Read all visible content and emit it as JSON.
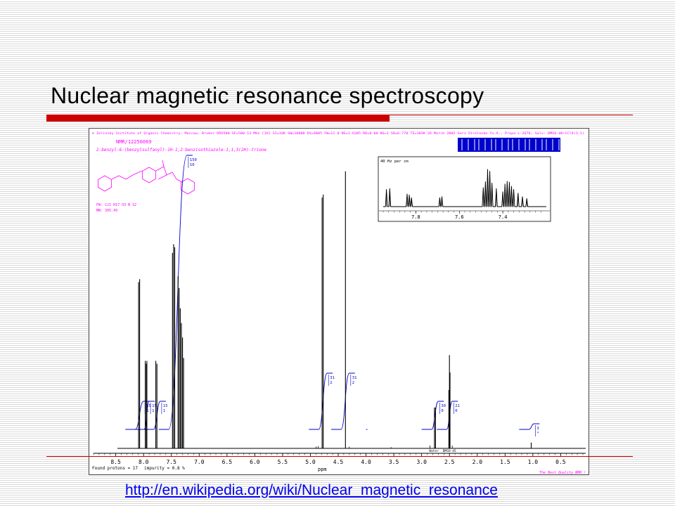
{
  "slide": {
    "title": "Nuclear magnetic resonance spectroscopy",
    "link_text": "http://en.wikipedia.org/wiki/Nuclear_magnetic_resonance"
  },
  "header": {
    "line1": "© Zelinsky Institute of Organic Chemistry, Moscow, Bruker DRX500 SF=500.13 MHz [1H] SI=16K SW=10000 DS=4005 FW=12.0 NS=1.6385 RD=0.00 NS=1 SR=6.778 TE=303K 26 March 2002 Gerz Strelenko Yu.A., Prepa L-2676; Solv: DMSO-d6+CCl4(3:1)",
    "sample_id": "NMR/12256069",
    "compound": "2-benzyl-6-(benzylsulfanyl)-1H-1,2-benzisothiazole-1,1,3(2H)-trione",
    "formula": "FW: C21 H17 O3 N S2",
    "mw": "MW: 395.49"
  },
  "footer": {
    "found_protons": "Found protons = 17",
    "impurity": "impurity = 0.8 %",
    "credit": "The Best Quality NMR !"
  },
  "colors": {
    "header_text": "#ff00ff",
    "trace": "#000000",
    "integral": "#0000cc",
    "accent_red": "#cc0000",
    "link": "#0000ee"
  },
  "chart_data": {
    "type": "line",
    "title": "",
    "xlabel": "ppm",
    "ylabel": "",
    "xlim": [
      8.9,
      0.05
    ],
    "x_reversed": true,
    "ticks": [
      8.5,
      8.0,
      7.5,
      7.0,
      6.5,
      6.0,
      5.5,
      5.0,
      4.5,
      4.0,
      3.5,
      3.0,
      2.5,
      2.0,
      1.5,
      1.0,
      0.5
    ],
    "tick_labels": [
      "8.5",
      "8.0",
      "7.5",
      "7.0",
      "6.5",
      "6.0",
      "5.5",
      "5.0",
      "4.5",
      "4.0",
      "3.5",
      "3.0",
      "2.5",
      "2.0",
      "1.5",
      "1.0",
      "0.5"
    ],
    "peaks": [
      {
        "ppm": 8.09,
        "height": 0.57
      },
      {
        "ppm": 8.07,
        "height": 0.58
      },
      {
        "ppm": 7.97,
        "height": 0.3
      },
      {
        "ppm": 7.95,
        "height": 0.29
      },
      {
        "ppm": 7.94,
        "height": 0.3
      },
      {
        "ppm": 7.78,
        "height": 0.3
      },
      {
        "ppm": 7.76,
        "height": 0.29
      },
      {
        "ppm": 7.48,
        "height": 0.67
      },
      {
        "ppm": 7.46,
        "height": 0.7
      },
      {
        "ppm": 7.44,
        "height": 0.69
      },
      {
        "ppm": 7.38,
        "height": 0.59
      },
      {
        "ppm": 7.36,
        "height": 0.55
      },
      {
        "ppm": 7.34,
        "height": 0.48
      },
      {
        "ppm": 7.32,
        "height": 0.43
      },
      {
        "ppm": 7.3,
        "height": 0.38
      },
      {
        "ppm": 7.28,
        "height": 0.31
      },
      {
        "ppm": 4.79,
        "height": 0.86
      },
      {
        "ppm": 4.77,
        "height": 0.87
      },
      {
        "ppm": 4.37,
        "height": 0.95
      },
      {
        "ppm": 2.77,
        "height": 0.14
      },
      {
        "ppm": 2.75,
        "height": 0.14
      },
      {
        "ppm": 2.51,
        "height": 0.2
      },
      {
        "ppm": 2.5,
        "height": 0.32
      },
      {
        "ppm": 2.49,
        "height": 0.26
      },
      {
        "ppm": 1.03,
        "height": 0.02
      }
    ],
    "integrals": [
      {
        "from": 8.15,
        "to": 8.0,
        "values": [
          "15",
          "1"
        ]
      },
      {
        "from": 7.99,
        "to": 7.9,
        "values": [
          "15",
          "1"
        ]
      },
      {
        "from": 7.82,
        "to": 7.7,
        "values": [
          "15",
          "1"
        ]
      },
      {
        "from": 7.55,
        "to": 7.22,
        "values": [
          "150",
          "10"
        ]
      },
      {
        "from": 4.85,
        "to": 4.7,
        "values": [
          "31",
          "2"
        ]
      },
      {
        "from": 4.45,
        "to": 4.3,
        "values": [
          "31",
          "2"
        ]
      },
      {
        "from": 2.82,
        "to": 2.7,
        "values": [
          "30",
          "0"
        ]
      },
      {
        "from": 2.55,
        "to": 2.45,
        "values": [
          "21",
          "0"
        ]
      },
      {
        "from": 1.07,
        "to": 0.98,
        "values": [
          "3",
          "*"
        ]
      }
    ],
    "solvent_labels": [
      {
        "ppm": 2.78,
        "text": "Water"
      },
      {
        "ppm": 2.5,
        "text": "DMSO-d5"
      }
    ],
    "inset": {
      "title": "40 Hz per cm",
      "xlim": [
        7.95,
        7.2
      ],
      "ticks": [
        7.8,
        7.6,
        7.4
      ],
      "tick_labels": [
        "7.8",
        "7.6",
        "7.4"
      ],
      "peaks": [
        {
          "ppm": 7.935,
          "height": 0.38
        },
        {
          "ppm": 7.92,
          "height": 0.4
        },
        {
          "ppm": 7.84,
          "height": 0.28
        },
        {
          "ppm": 7.83,
          "height": 0.26
        },
        {
          "ppm": 7.82,
          "height": 0.2
        },
        {
          "ppm": 7.69,
          "height": 0.2
        },
        {
          "ppm": 7.68,
          "height": 0.22
        },
        {
          "ppm": 7.49,
          "height": 0.42
        },
        {
          "ppm": 7.48,
          "height": 0.55
        },
        {
          "ppm": 7.47,
          "height": 0.82
        },
        {
          "ppm": 7.46,
          "height": 0.78
        },
        {
          "ppm": 7.45,
          "height": 0.52
        },
        {
          "ppm": 7.43,
          "height": 0.4
        },
        {
          "ppm": 7.4,
          "height": 0.33
        },
        {
          "ppm": 7.39,
          "height": 0.5
        },
        {
          "ppm": 7.38,
          "height": 0.56
        },
        {
          "ppm": 7.37,
          "height": 0.54
        },
        {
          "ppm": 7.36,
          "height": 0.45
        },
        {
          "ppm": 7.35,
          "height": 0.38
        },
        {
          "ppm": 7.33,
          "height": 0.3
        },
        {
          "ppm": 7.31,
          "height": 0.22
        },
        {
          "ppm": 7.29,
          "height": 0.18
        }
      ]
    }
  }
}
